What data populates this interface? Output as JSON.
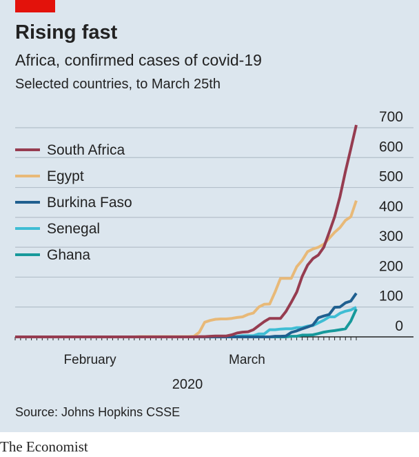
{
  "chart_data": {
    "type": "line",
    "title": "Rising fast",
    "subtitle": "Africa, confirmed cases of covid-19",
    "subsubtitle": "Selected countries, to March 25th",
    "xlabel": "2020",
    "source": "Source: Johns Hopkins CSSE",
    "brand": "The Economist",
    "categories": [
      null,
      null,
      null,
      null,
      null,
      null,
      null,
      null,
      null,
      null,
      "February",
      null,
      null,
      null,
      null,
      null,
      null,
      null,
      null,
      null,
      null,
      null,
      null,
      null,
      null,
      null,
      null,
      null,
      null,
      null,
      null,
      null,
      null,
      null,
      null,
      null,
      null,
      null,
      null,
      "March",
      null,
      null,
      null,
      null,
      null,
      null,
      null,
      null,
      null,
      null,
      null,
      null,
      null,
      null,
      null,
      null,
      null,
      null,
      null,
      null,
      null,
      null,
      null,
      null
    ],
    "ylim": [
      0,
      700
    ],
    "yticks": [
      0,
      100,
      200,
      300,
      400,
      500,
      600,
      700
    ],
    "grid": true,
    "legend": "top-left",
    "series": [
      {
        "name": "South Africa",
        "color": "#963c50",
        "values": [
          0,
          0,
          0,
          0,
          0,
          0,
          0,
          0,
          0,
          0,
          0,
          0,
          0,
          0,
          0,
          0,
          0,
          0,
          0,
          0,
          0,
          0,
          0,
          0,
          0,
          0,
          0,
          0,
          0,
          0,
          0,
          0,
          0,
          0,
          1,
          1,
          2,
          3,
          3,
          3,
          7,
          13,
          16,
          17,
          24,
          38,
          51,
          62,
          62,
          62,
          85,
          116,
          150,
          202,
          240,
          262,
          274,
          300,
          350,
          402,
          470,
          554,
          630,
          709
        ]
      },
      {
        "name": "Egypt",
        "color": "#e8b978",
        "values": [
          0,
          0,
          0,
          0,
          0,
          0,
          0,
          0,
          0,
          0,
          0,
          0,
          0,
          0,
          0,
          0,
          0,
          0,
          0,
          0,
          0,
          0,
          0,
          1,
          1,
          1,
          1,
          1,
          1,
          1,
          1,
          1,
          1,
          2,
          15,
          49,
          55,
          59,
          60,
          60,
          62,
          65,
          67,
          75,
          80,
          100,
          109,
          110,
          150,
          196,
          196,
          196,
          235,
          256,
          285,
          294,
          300,
          310,
          330,
          350,
          366,
          390,
          402,
          456
        ]
      },
      {
        "name": "Burkina Faso",
        "color": "#1f5f8f",
        "values": [
          0,
          0,
          0,
          0,
          0,
          0,
          0,
          0,
          0,
          0,
          0,
          0,
          0,
          0,
          0,
          0,
          0,
          0,
          0,
          0,
          0,
          0,
          0,
          0,
          0,
          0,
          0,
          0,
          0,
          0,
          0,
          0,
          0,
          0,
          0,
          0,
          0,
          0,
          0,
          0,
          0,
          0,
          0,
          0,
          0,
          0,
          0,
          0,
          2,
          2,
          3,
          15,
          20,
          27,
          33,
          40,
          64,
          70,
          75,
          99,
          100,
          114,
          120,
          146
        ]
      },
      {
        "name": "Senegal",
        "color": "#3fbdd4",
        "values": [
          0,
          0,
          0,
          0,
          0,
          0,
          0,
          0,
          0,
          0,
          0,
          0,
          0,
          0,
          0,
          0,
          0,
          0,
          0,
          0,
          0,
          0,
          0,
          0,
          0,
          0,
          0,
          0,
          0,
          0,
          0,
          0,
          0,
          0,
          0,
          0,
          0,
          0,
          0,
          0,
          1,
          2,
          4,
          4,
          4,
          10,
          10,
          24,
          24,
          26,
          27,
          27,
          31,
          31,
          36,
          38,
          47,
          56,
          67,
          67,
          79,
          86,
          90,
          99
        ]
      },
      {
        "name": "Ghana",
        "color": "#17999b",
        "values": [
          0,
          0,
          0,
          0,
          0,
          0,
          0,
          0,
          0,
          0,
          0,
          0,
          0,
          0,
          0,
          0,
          0,
          0,
          0,
          0,
          0,
          0,
          0,
          0,
          0,
          0,
          0,
          0,
          0,
          0,
          0,
          0,
          0,
          0,
          0,
          0,
          0,
          0,
          0,
          0,
          0,
          0,
          0,
          0,
          0,
          0,
          0,
          0,
          0,
          0,
          0,
          2,
          2,
          6,
          6,
          7,
          11,
          16,
          19,
          21,
          24,
          27,
          53,
          93
        ]
      }
    ]
  }
}
